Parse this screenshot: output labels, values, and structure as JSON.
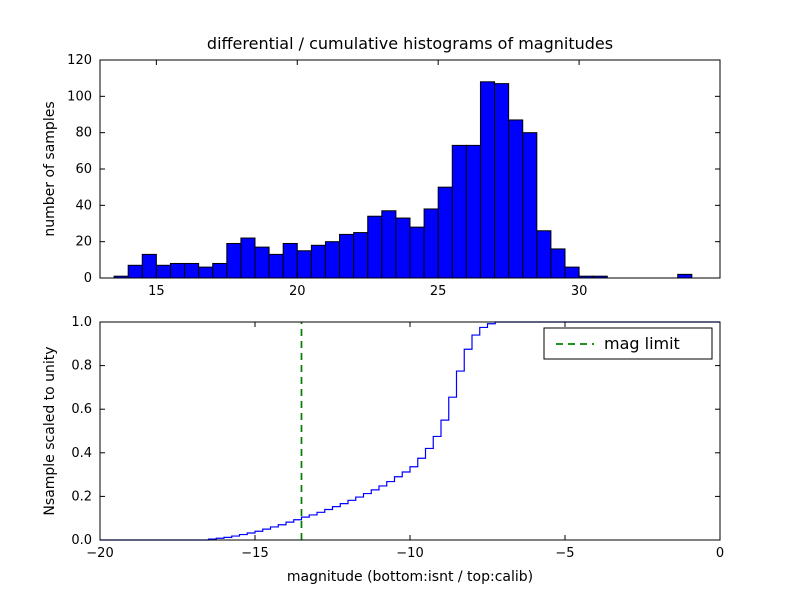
{
  "figure": {
    "background": "#ffffff",
    "frame_color": "#000000"
  },
  "chart_data": [
    {
      "type": "bar",
      "role": "differential-histogram",
      "title": "differential / cumulative histograms of magnitudes",
      "ylabel": "number of samples",
      "bar_color": "#0000ff",
      "bar_edge_color": "#000000",
      "bin_start": 13.5,
      "bin_width": 0.5,
      "counts": [
        1,
        7,
        13,
        7,
        8,
        8,
        6,
        8,
        19,
        22,
        17,
        13,
        19,
        15,
        18,
        20,
        24,
        25,
        34,
        37,
        33,
        28,
        38,
        50,
        73,
        73,
        108,
        107,
        87,
        80,
        26,
        16,
        6,
        1,
        1,
        0,
        0,
        0,
        0,
        0,
        2
      ],
      "xlim": [
        13,
        35
      ],
      "ylim": [
        0,
        120
      ],
      "xticks": [
        15,
        20,
        25,
        30
      ],
      "xtick_labels": [
        "15",
        "20",
        "25",
        "30"
      ],
      "yticks": [
        0,
        20,
        40,
        60,
        80,
        100,
        120
      ],
      "ytick_labels": [
        "0",
        "20",
        "40",
        "60",
        "80",
        "100",
        "120"
      ],
      "grid": false
    },
    {
      "type": "line",
      "role": "cumulative-histogram",
      "line_style": "step",
      "line_color": "#0000ff",
      "xlabel": "magnitude (bottom:isnt / top:calib)",
      "ylabel": "Nsample scaled to unity",
      "x": [
        -20,
        -16.5,
        -16.25,
        -16,
        -15.75,
        -15.5,
        -15.25,
        -15,
        -14.75,
        -14.5,
        -14.25,
        -14,
        -13.75,
        -13.5,
        -13.25,
        -13,
        -12.75,
        -12.5,
        -12.25,
        -12,
        -11.75,
        -11.5,
        -11.25,
        -11,
        -10.75,
        -10.5,
        -10.25,
        -10,
        -9.75,
        -9.5,
        -9.25,
        -9,
        -8.75,
        -8.5,
        -8.25,
        -8,
        -7.75,
        -7.5,
        -7.25,
        0
      ],
      "y": [
        0,
        0.004,
        0.008,
        0.012,
        0.018,
        0.025,
        0.032,
        0.04,
        0.05,
        0.06,
        0.07,
        0.082,
        0.093,
        0.105,
        0.115,
        0.127,
        0.14,
        0.153,
        0.167,
        0.182,
        0.197,
        0.213,
        0.23,
        0.248,
        0.268,
        0.29,
        0.312,
        0.336,
        0.375,
        0.42,
        0.475,
        0.55,
        0.655,
        0.775,
        0.875,
        0.94,
        0.975,
        0.992,
        1.0,
        1.0
      ],
      "xlim": [
        -20,
        0
      ],
      "ylim": [
        0,
        1.0
      ],
      "xticks": [
        -20,
        -15,
        -10,
        -5,
        0
      ],
      "xtick_labels": [
        "−20",
        "−15",
        "−10",
        "−5",
        "0"
      ],
      "yticks": [
        0,
        0.2,
        0.4,
        0.6,
        0.8,
        1.0
      ],
      "ytick_labels": [
        "0.0",
        "0.2",
        "0.4",
        "0.6",
        "0.8",
        "1.0"
      ],
      "vline": {
        "x": -13.5,
        "color": "#008000",
        "dash": "7,5",
        "label": "mag limit"
      },
      "legend": {
        "position": "upper-right",
        "entries": [
          {
            "label": "mag limit",
            "color": "#008000",
            "style": "dashed"
          }
        ]
      },
      "grid": false
    }
  ]
}
